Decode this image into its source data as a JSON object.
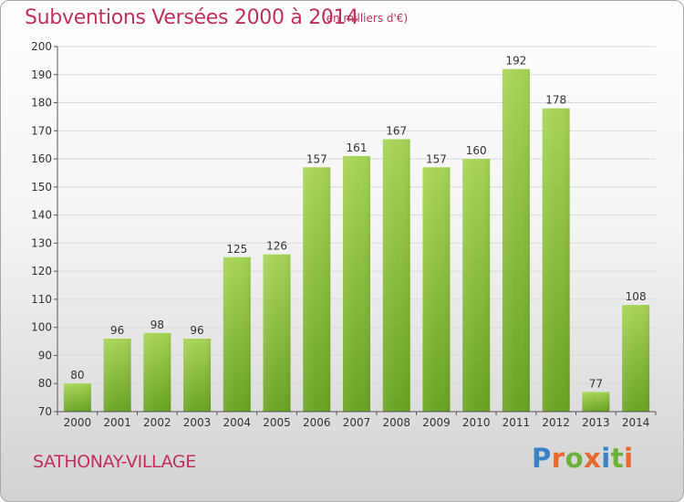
{
  "title": "Subventions Versées 2000 à 2014",
  "unit_note": "(en milliers d'€)",
  "place": "SATHONAY-VILLAGE",
  "brand": "Proxiti",
  "colors": {
    "title": "#c0305a",
    "bar_light": "#a6d455",
    "bar_dark": "#6aa322",
    "axis": "#555555",
    "grid": "#d9d9d9",
    "brand_letters": [
      "#3a82c6",
      "#e8692a",
      "#6ab23c",
      "#e8692a",
      "#3a82c6",
      "#6ab23c",
      "#e8692a"
    ]
  },
  "chart_data": {
    "type": "bar",
    "categories": [
      "2000",
      "2001",
      "2002",
      "2003",
      "2004",
      "2005",
      "2006",
      "2007",
      "2008",
      "2009",
      "2010",
      "2011",
      "2012",
      "2013",
      "2014"
    ],
    "values": [
      80,
      96,
      98,
      96,
      125,
      126,
      157,
      161,
      167,
      157,
      160,
      192,
      178,
      77,
      108
    ],
    "title": "Subventions Versées 2000 à 2014",
    "xlabel": "",
    "ylabel": "",
    "ylim": [
      70,
      200
    ],
    "yticks": [
      70,
      80,
      90,
      100,
      110,
      120,
      130,
      140,
      150,
      160,
      170,
      180,
      190,
      200
    ],
    "grid": true,
    "legend": "none"
  }
}
